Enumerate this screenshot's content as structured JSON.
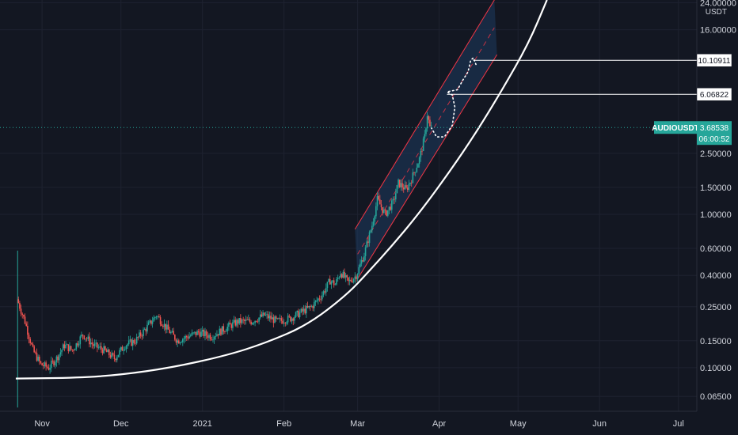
{
  "symbol": "AUDIOUSDT",
  "price_scale_unit": "USDT",
  "chart_data": {
    "type": "candlestick",
    "y_scale": "log",
    "ylim": [
      0.052,
      25
    ],
    "xlim": [
      "2020-10-16",
      "2021-07-08"
    ],
    "grid": true,
    "y_ticks": [
      {
        "value": 24,
        "label": "24.00000"
      },
      {
        "value": 16,
        "label": "16.00000"
      },
      {
        "value": 2.5,
        "label": "2.50000"
      },
      {
        "value": 1.5,
        "label": "1.50000"
      },
      {
        "value": 1.0,
        "label": "1.00000"
      },
      {
        "value": 0.6,
        "label": "0.60000"
      },
      {
        "value": 0.4,
        "label": "0.40000"
      },
      {
        "value": 0.25,
        "label": "0.25000"
      },
      {
        "value": 0.15,
        "label": "0.15000"
      },
      {
        "value": 0.1,
        "label": "0.10000"
      },
      {
        "value": 0.065,
        "label": "0.06500"
      }
    ],
    "x_ticks": [
      {
        "date": "2020-11-01",
        "label": "Nov"
      },
      {
        "date": "2020-12-01",
        "label": "Dec"
      },
      {
        "date": "2021-01-01",
        "label": "2021"
      },
      {
        "date": "2021-02-01",
        "label": "Feb"
      },
      {
        "date": "2021-03-01",
        "label": "Mar"
      },
      {
        "date": "2021-04-01",
        "label": "Apr"
      },
      {
        "date": "2021-05-01",
        "label": "May"
      },
      {
        "date": "2021-06-01",
        "label": "Jun"
      },
      {
        "date": "2021-07-01",
        "label": "Jul"
      }
    ],
    "price_path": [
      [
        "2020-10-23",
        0.28
      ],
      [
        "2020-10-26",
        0.2
      ],
      [
        "2020-10-29",
        0.13
      ],
      [
        "2020-11-01",
        0.105
      ],
      [
        "2020-11-04",
        0.1
      ],
      [
        "2020-11-07",
        0.115
      ],
      [
        "2020-11-10",
        0.14
      ],
      [
        "2020-11-13",
        0.13
      ],
      [
        "2020-11-17",
        0.165
      ],
      [
        "2020-11-21",
        0.14
      ],
      [
        "2020-11-25",
        0.13
      ],
      [
        "2020-11-29",
        0.115
      ],
      [
        "2020-12-03",
        0.14
      ],
      [
        "2020-12-07",
        0.15
      ],
      [
        "2020-12-11",
        0.18
      ],
      [
        "2020-12-15",
        0.22
      ],
      [
        "2020-12-19",
        0.18
      ],
      [
        "2020-12-23",
        0.15
      ],
      [
        "2020-12-27",
        0.16
      ],
      [
        "2020-12-31",
        0.17
      ],
      [
        "2021-01-05",
        0.16
      ],
      [
        "2021-01-10",
        0.18
      ],
      [
        "2021-01-15",
        0.2
      ],
      [
        "2021-01-20",
        0.2
      ],
      [
        "2021-01-25",
        0.22
      ],
      [
        "2021-01-30",
        0.2
      ],
      [
        "2021-02-04",
        0.21
      ],
      [
        "2021-02-08",
        0.23
      ],
      [
        "2021-02-12",
        0.25
      ],
      [
        "2021-02-16",
        0.3
      ],
      [
        "2021-02-19",
        0.37
      ],
      [
        "2021-02-21",
        0.35
      ],
      [
        "2021-02-23",
        0.42
      ],
      [
        "2021-02-26",
        0.36
      ],
      [
        "2021-03-01",
        0.4
      ],
      [
        "2021-03-04",
        0.55
      ],
      [
        "2021-03-07",
        0.85
      ],
      [
        "2021-03-09",
        1.25
      ],
      [
        "2021-03-12",
        1.0
      ],
      [
        "2021-03-15",
        1.2
      ],
      [
        "2021-03-17",
        1.6
      ],
      [
        "2021-03-20",
        1.45
      ],
      [
        "2021-03-22",
        1.7
      ],
      [
        "2021-03-25",
        2.3
      ],
      [
        "2021-03-27",
        3.2
      ],
      [
        "2021-03-28",
        4.5
      ],
      [
        "2021-03-29",
        3.68538
      ]
    ],
    "projection_path": [
      [
        "2021-03-29",
        3.68
      ],
      [
        "2021-03-31",
        3.2
      ],
      [
        "2021-04-03",
        3.2
      ],
      [
        "2021-04-06",
        3.8
      ],
      [
        "2021-04-07",
        5.0
      ],
      [
        "2021-04-06",
        6.0
      ],
      [
        "2021-04-04",
        6.3
      ],
      [
        "2021-04-08",
        6.5
      ],
      [
        "2021-04-10",
        7.5
      ],
      [
        "2021-04-12",
        8.5
      ],
      [
        "2021-04-13",
        10.1
      ],
      [
        "2021-04-14",
        10.5
      ],
      [
        "2021-04-15",
        9.5
      ]
    ],
    "support_curve": [
      [
        "2020-10-22",
        0.085
      ],
      [
        "2020-11-15",
        0.086
      ],
      [
        "2020-12-01",
        0.09
      ],
      [
        "2020-12-20",
        0.1
      ],
      [
        "2021-01-10",
        0.12
      ],
      [
        "2021-01-25",
        0.145
      ],
      [
        "2021-02-10",
        0.19
      ],
      [
        "2021-02-25",
        0.3
      ],
      [
        "2021-03-05",
        0.42
      ],
      [
        "2021-03-15",
        0.65
      ],
      [
        "2021-03-25",
        1.05
      ],
      [
        "2021-04-05",
        1.9
      ],
      [
        "2021-04-15",
        3.4
      ],
      [
        "2021-04-25",
        6.5
      ],
      [
        "2021-05-05",
        13
      ],
      [
        "2021-05-12",
        25
      ]
    ],
    "channel": {
      "upper": [
        [
          "2021-02-28",
          0.8
        ],
        [
          "2021-04-22",
          25
        ]
      ],
      "lower": [
        [
          "2021-03-01",
          0.38
        ],
        [
          "2021-04-23",
          11
        ]
      ],
      "mid_dashed": [
        [
          "2021-03-01",
          0.55
        ],
        [
          "2021-04-22",
          16.5
        ]
      ]
    },
    "horizontal_levels": [
      {
        "value": 10.10911,
        "label": "10.10911",
        "from": "2021-04-14"
      },
      {
        "value": 6.06822,
        "label": "6.06822",
        "from": "2021-04-04"
      }
    ],
    "current_price": {
      "value": 3.68538,
      "label": "3.68538",
      "countdown": "06:00:52"
    }
  },
  "colors": {
    "background": "#131722",
    "grid": "#1e2230",
    "up": "#26a69a",
    "down": "#ef5350",
    "channel_fill": "#1e3a5f",
    "channel_line": "#f23645",
    "support": "#ffffff",
    "price_badge": "#26a69a"
  }
}
